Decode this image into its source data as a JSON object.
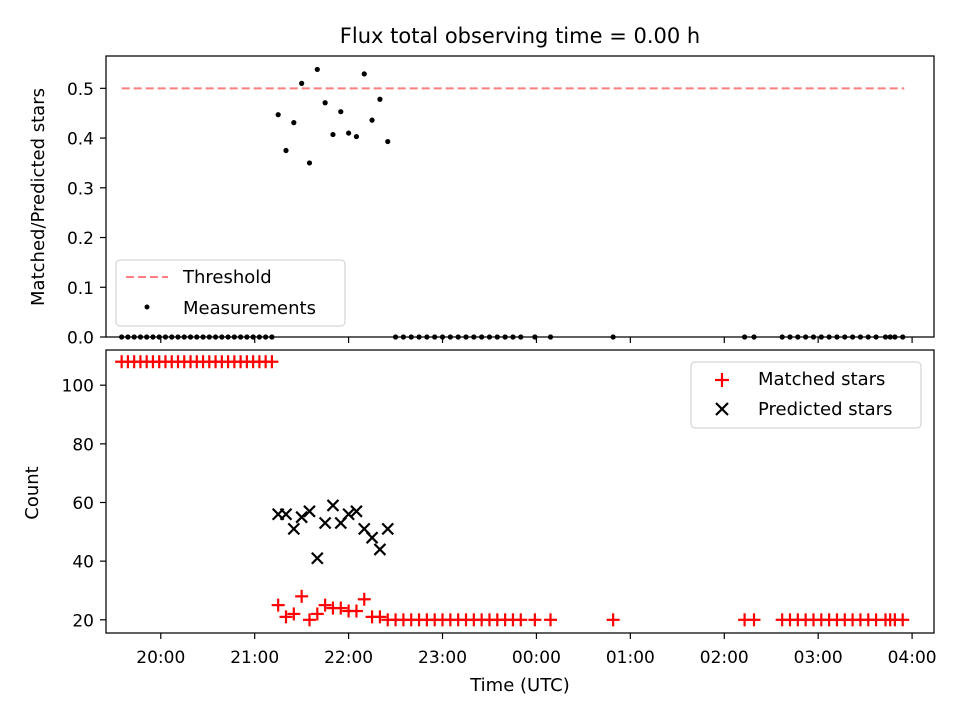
{
  "chart_data": {
    "type": "scatter",
    "title": "Flux total observing time = 0.00 h",
    "xlabel": "Time (UTC)",
    "xlim": [
      "19:25",
      "04:14"
    ],
    "x_ticks": [
      "20:00",
      "21:00",
      "22:00",
      "23:00",
      "00:00",
      "01:00",
      "02:00",
      "03:00",
      "04:00"
    ],
    "panels": [
      {
        "id": "ratio",
        "ylabel": "Matched/Predicted stars",
        "ylim": [
          0,
          0.565
        ],
        "y_ticks": [
          "0.0",
          "0.1",
          "0.2",
          "0.3",
          "0.4",
          "0.5"
        ],
        "legend_position": "lower-left",
        "lines": [
          {
            "name": "Threshold",
            "color": "#ff7f7f",
            "style": "dashed",
            "y": 0.5,
            "x": [
              "19:35",
              "03:55"
            ]
          }
        ],
        "series": [
          {
            "name": "Measurements",
            "marker": "dot",
            "color": "#000000",
            "points": [
              [
                "19:35",
                0
              ],
              [
                "19:39",
                0
              ],
              [
                "19:43",
                0
              ],
              [
                "19:47",
                0
              ],
              [
                "19:51",
                0
              ],
              [
                "19:55",
                0
              ],
              [
                "19:59",
                0
              ],
              [
                "20:03",
                0
              ],
              [
                "20:07",
                0
              ],
              [
                "20:11",
                0
              ],
              [
                "20:15",
                0
              ],
              [
                "20:19",
                0
              ],
              [
                "20:23",
                0
              ],
              [
                "20:27",
                0
              ],
              [
                "20:31",
                0
              ],
              [
                "20:35",
                0
              ],
              [
                "20:39",
                0
              ],
              [
                "20:43",
                0
              ],
              [
                "20:47",
                0
              ],
              [
                "20:51",
                0
              ],
              [
                "20:55",
                0
              ],
              [
                "20:59",
                0
              ],
              [
                "21:03",
                0
              ],
              [
                "21:07",
                0
              ],
              [
                "21:11",
                0
              ],
              [
                "21:15",
                0.447
              ],
              [
                "21:20",
                0.375
              ],
              [
                "21:25",
                0.431
              ],
              [
                "21:30",
                0.51
              ],
              [
                "21:35",
                0.35
              ],
              [
                "21:40",
                0.538
              ],
              [
                "21:45",
                0.471
              ],
              [
                "21:50",
                0.407
              ],
              [
                "21:55",
                0.453
              ],
              [
                "22:00",
                0.41
              ],
              [
                "22:05",
                0.403
              ],
              [
                "22:10",
                0.529
              ],
              [
                "22:15",
                0.436
              ],
              [
                "22:20",
                0.478
              ],
              [
                "22:25",
                0.393
              ],
              [
                "22:30",
                0
              ],
              [
                "22:35",
                0
              ],
              [
                "22:40",
                0
              ],
              [
                "22:45",
                0
              ],
              [
                "22:50",
                0
              ],
              [
                "22:55",
                0
              ],
              [
                "23:00",
                0
              ],
              [
                "23:05",
                0
              ],
              [
                "23:10",
                0
              ],
              [
                "23:15",
                0
              ],
              [
                "23:20",
                0
              ],
              [
                "23:25",
                0
              ],
              [
                "23:30",
                0
              ],
              [
                "23:35",
                0
              ],
              [
                "23:40",
                0
              ],
              [
                "23:45",
                0
              ],
              [
                "23:50",
                0
              ],
              [
                "23:59",
                0
              ],
              [
                "00:09",
                0
              ],
              [
                "00:49",
                0
              ],
              [
                "02:13",
                0
              ],
              [
                "02:19",
                0
              ],
              [
                "02:37",
                0
              ],
              [
                "02:42",
                0
              ],
              [
                "02:47",
                0
              ],
              [
                "02:52",
                0
              ],
              [
                "02:57",
                0
              ],
              [
                "03:02",
                0
              ],
              [
                "03:07",
                0
              ],
              [
                "03:12",
                0
              ],
              [
                "03:17",
                0
              ],
              [
                "03:22",
                0
              ],
              [
                "03:27",
                0
              ],
              [
                "03:32",
                0
              ],
              [
                "03:37",
                0
              ],
              [
                "03:43",
                0
              ],
              [
                "03:46",
                0
              ],
              [
                "03:49",
                0
              ],
              [
                "03:54",
                0
              ]
            ]
          }
        ]
      },
      {
        "id": "count",
        "ylabel": "Count",
        "ylim": [
          15.5,
          112
        ],
        "y_ticks": [
          "20",
          "40",
          "60",
          "80",
          "100"
        ],
        "legend_position": "upper-right",
        "series": [
          {
            "name": "Matched stars",
            "marker": "plus",
            "color": "#ff0000",
            "points": [
              [
                "19:35",
                108
              ],
              [
                "19:39",
                108
              ],
              [
                "19:43",
                108
              ],
              [
                "19:47",
                108
              ],
              [
                "19:51",
                108
              ],
              [
                "19:55",
                108
              ],
              [
                "19:59",
                108
              ],
              [
                "20:03",
                108
              ],
              [
                "20:07",
                108
              ],
              [
                "20:11",
                108
              ],
              [
                "20:15",
                108
              ],
              [
                "20:19",
                108
              ],
              [
                "20:23",
                108
              ],
              [
                "20:27",
                108
              ],
              [
                "20:31",
                108
              ],
              [
                "20:35",
                108
              ],
              [
                "20:39",
                108
              ],
              [
                "20:43",
                108
              ],
              [
                "20:47",
                108
              ],
              [
                "20:51",
                108
              ],
              [
                "20:55",
                108
              ],
              [
                "20:59",
                108
              ],
              [
                "21:03",
                108
              ],
              [
                "21:07",
                108
              ],
              [
                "21:11",
                108
              ],
              [
                "21:15",
                25
              ],
              [
                "21:20",
                21
              ],
              [
                "21:25",
                22
              ],
              [
                "21:30",
                28
              ],
              [
                "21:35",
                20
              ],
              [
                "21:40",
                22
              ],
              [
                "21:45",
                25
              ],
              [
                "21:50",
                24
              ],
              [
                "21:55",
                24
              ],
              [
                "22:00",
                23
              ],
              [
                "22:05",
                23
              ],
              [
                "22:10",
                27
              ],
              [
                "22:15",
                21
              ],
              [
                "22:20",
                21
              ],
              [
                "22:25",
                20
              ],
              [
                "22:30",
                20
              ],
              [
                "22:35",
                20
              ],
              [
                "22:40",
                20
              ],
              [
                "22:45",
                20
              ],
              [
                "22:50",
                20
              ],
              [
                "22:55",
                20
              ],
              [
                "23:00",
                20
              ],
              [
                "23:05",
                20
              ],
              [
                "23:10",
                20
              ],
              [
                "23:15",
                20
              ],
              [
                "23:20",
                20
              ],
              [
                "23:25",
                20
              ],
              [
                "23:30",
                20
              ],
              [
                "23:35",
                20
              ],
              [
                "23:40",
                20
              ],
              [
                "23:45",
                20
              ],
              [
                "23:50",
                20
              ],
              [
                "23:59",
                20
              ],
              [
                "00:09",
                20
              ],
              [
                "00:49",
                20
              ],
              [
                "02:13",
                20
              ],
              [
                "02:19",
                20
              ],
              [
                "02:37",
                20
              ],
              [
                "02:42",
                20
              ],
              [
                "02:47",
                20
              ],
              [
                "02:52",
                20
              ],
              [
                "02:57",
                20
              ],
              [
                "03:02",
                20
              ],
              [
                "03:07",
                20
              ],
              [
                "03:12",
                20
              ],
              [
                "03:17",
                20
              ],
              [
                "03:22",
                20
              ],
              [
                "03:27",
                20
              ],
              [
                "03:32",
                20
              ],
              [
                "03:37",
                20
              ],
              [
                "03:43",
                20
              ],
              [
                "03:46",
                20
              ],
              [
                "03:49",
                20
              ],
              [
                "03:54",
                20
              ]
            ]
          },
          {
            "name": "Predicted stars",
            "marker": "x",
            "color": "#000000",
            "points": [
              [
                "21:15",
                56
              ],
              [
                "21:20",
                56
              ],
              [
                "21:25",
                51
              ],
              [
                "21:30",
                55
              ],
              [
                "21:35",
                57
              ],
              [
                "21:40",
                41
              ],
              [
                "21:45",
                53
              ],
              [
                "21:50",
                59
              ],
              [
                "21:55",
                53
              ],
              [
                "22:00",
                56
              ],
              [
                "22:05",
                57
              ],
              [
                "22:10",
                51
              ],
              [
                "22:15",
                48
              ],
              [
                "22:20",
                44
              ],
              [
                "22:25",
                51
              ]
            ]
          }
        ]
      }
    ]
  }
}
